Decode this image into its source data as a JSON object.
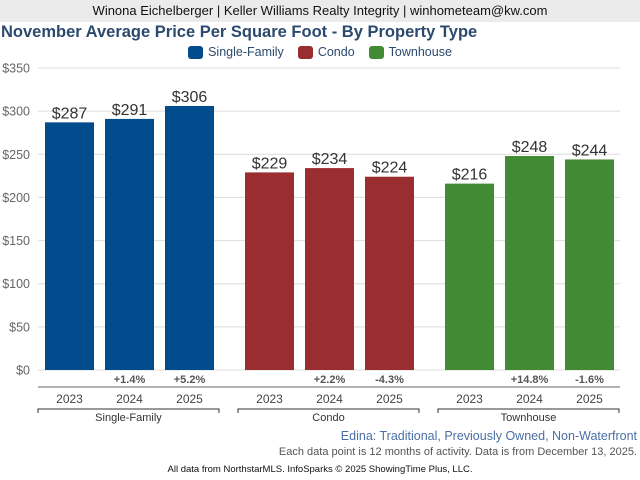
{
  "header": {
    "agent_line": "Winona Eichelberger | Keller Williams Realty Integrity | winhometeam@kw.com"
  },
  "chart_data": {
    "type": "bar",
    "title": "November Average Price Per Square Foot - By Property Type",
    "xlabel": "",
    "ylabel": "",
    "ylim": [
      0,
      350
    ],
    "yticks": [
      0,
      50,
      100,
      150,
      200,
      250,
      300,
      350
    ],
    "ytick_labels": [
      "$0",
      "$50",
      "$100",
      "$150",
      "$200",
      "$250",
      "$300",
      "$350"
    ],
    "grid": true,
    "legend_position": "top-center",
    "groups": [
      {
        "name": "Single-Family",
        "color": "#004c8c",
        "categories": [
          "2023",
          "2024",
          "2025"
        ],
        "values": [
          287,
          291,
          306
        ],
        "value_labels": [
          "$287",
          "$291",
          "$306"
        ],
        "changes": [
          "",
          "+1.4%",
          "+5.2%"
        ]
      },
      {
        "name": "Condo",
        "color": "#9a2d2f",
        "categories": [
          "2023",
          "2024",
          "2025"
        ],
        "values": [
          229,
          234,
          224
        ],
        "value_labels": [
          "$229",
          "$234",
          "$224"
        ],
        "changes": [
          "",
          "+2.2%",
          "-4.3%"
        ]
      },
      {
        "name": "Townhouse",
        "color": "#438a34",
        "categories": [
          "2023",
          "2024",
          "2025"
        ],
        "values": [
          216,
          248,
          244
        ],
        "value_labels": [
          "$216",
          "$248",
          "$244"
        ],
        "changes": [
          "",
          "+14.8%",
          "-1.6%"
        ]
      }
    ],
    "legend": [
      "Single-Family",
      "Condo",
      "Townhouse"
    ]
  },
  "subtitle": "Edina: Traditional, Previously Owned, Non-Waterfront",
  "note": "Each data point is 12 months of activity. Data is from December 13, 2025.",
  "footer": "All data from NorthstarMLS. InfoSparks © 2025 ShowingTime Plus, LLC."
}
